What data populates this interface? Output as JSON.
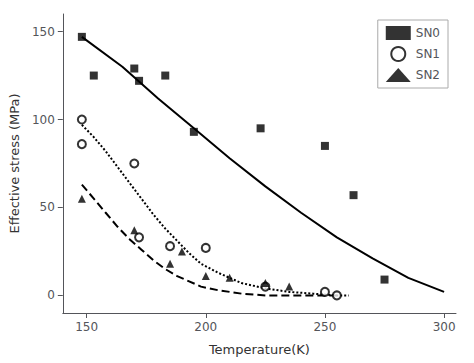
{
  "chart_data": {
    "type": "scatter",
    "title": "",
    "xlabel": "Temperature(K)",
    "ylabel": "Effective stress (MPa)",
    "xlim": [
      140,
      305
    ],
    "ylim": [
      -10,
      160
    ],
    "xticks": [
      150,
      200,
      250,
      300
    ],
    "yticks": [
      0,
      50,
      100,
      150
    ],
    "grid": false,
    "legend": "upper right",
    "background_color": "#ffffff",
    "series": [
      {
        "name": "SN0",
        "type": "scatter",
        "marker": "square",
        "color": "#000000",
        "x": [
          148,
          153,
          170,
          172,
          183,
          195,
          223,
          250,
          262,
          275
        ],
        "values": [
          147,
          125,
          129,
          122,
          125,
          93,
          95,
          85,
          57,
          9
        ]
      },
      {
        "type": "line",
        "line_style": "solid",
        "color": "#000000",
        "x": [
          148,
          165,
          180,
          195,
          210,
          225,
          240,
          255,
          270,
          285,
          300
        ],
        "values": [
          147,
          130,
          112,
          95,
          78,
          62,
          47,
          33,
          21,
          10,
          2
        ]
      },
      {
        "name": "SN1",
        "type": "scatter",
        "marker": "circle-open",
        "color": "#000000",
        "x": [
          148,
          148,
          170,
          172,
          185,
          200,
          225,
          250,
          255
        ],
        "values": [
          100,
          86,
          75,
          33,
          28,
          27,
          5,
          2,
          0
        ]
      },
      {
        "type": "line",
        "line_style": "dotted",
        "color": "#000000",
        "x": [
          148,
          153,
          158,
          163,
          168,
          173,
          178,
          183,
          188,
          193,
          198,
          205,
          215,
          225,
          235,
          245,
          255,
          260
        ],
        "values": [
          97,
          90,
          82,
          73,
          64,
          55,
          46,
          38,
          31,
          24,
          18,
          13,
          7,
          4,
          2,
          1,
          0,
          0
        ]
      },
      {
        "name": "SN2",
        "type": "scatter",
        "marker": "triangle",
        "color": "#000000",
        "x": [
          148,
          170,
          185,
          190,
          200,
          210,
          225,
          235
        ],
        "values": [
          55,
          37,
          18,
          25,
          11,
          10,
          7,
          5
        ]
      },
      {
        "type": "line",
        "line_style": "dashed",
        "color": "#000000",
        "x": [
          148,
          153,
          158,
          163,
          168,
          173,
          178,
          183,
          188,
          193,
          198,
          205,
          215,
          225,
          235,
          245,
          255
        ],
        "values": [
          63,
          55,
          47,
          39,
          32,
          26,
          20,
          15,
          11,
          8,
          5,
          3,
          1,
          0,
          0,
          0,
          0
        ]
      }
    ]
  }
}
